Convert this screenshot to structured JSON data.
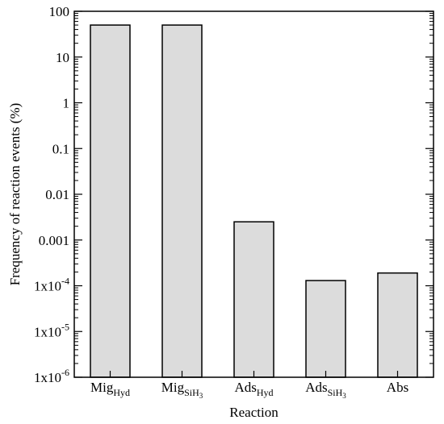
{
  "chart_data": {
    "type": "bar",
    "title": "",
    "xlabel": "Reaction",
    "ylabel": "Frequency of reaction events (%)",
    "yscale": "log",
    "ylim": [
      1e-06,
      100
    ],
    "grid": false,
    "legend": "none",
    "categories": [
      {
        "base": "Mig",
        "sub": "Hyd",
        "subsub": ""
      },
      {
        "base": "Mig",
        "sub": "SiH",
        "subsub": "3"
      },
      {
        "base": "Ads",
        "sub": "Hyd",
        "subsub": ""
      },
      {
        "base": "Ads",
        "sub": "SiH",
        "subsub": "3"
      },
      {
        "base": "Abs",
        "sub": "",
        "subsub": ""
      }
    ],
    "values": [
      50,
      50,
      0.0025,
      0.00013,
      0.00019
    ],
    "yticks": [
      {
        "value": 100,
        "label": "100",
        "sup": ""
      },
      {
        "value": 10,
        "label": "10",
        "sup": ""
      },
      {
        "value": 1,
        "label": "1",
        "sup": ""
      },
      {
        "value": 0.1,
        "label": "0.1",
        "sup": ""
      },
      {
        "value": 0.01,
        "label": "0.01",
        "sup": ""
      },
      {
        "value": 0.001,
        "label": "0.001",
        "sup": ""
      },
      {
        "value": 0.0001,
        "label": "1x10",
        "sup": "-4"
      },
      {
        "value": 1e-05,
        "label": "1x10",
        "sup": "-5"
      },
      {
        "value": 1e-06,
        "label": "1x10",
        "sup": "-6"
      }
    ],
    "colors": {
      "bar_fill": "#dcdcdc",
      "bar_stroke": "#000000",
      "axis": "#000000"
    }
  }
}
